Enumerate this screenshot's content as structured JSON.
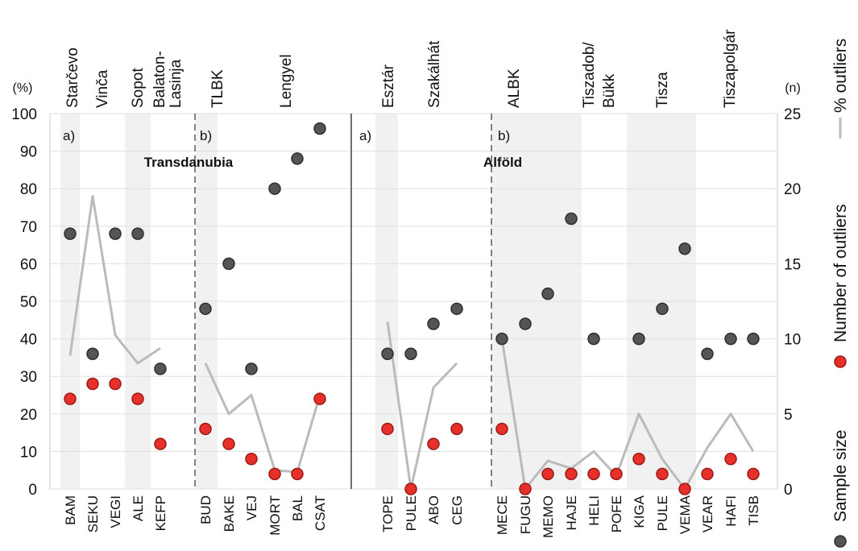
{
  "chart_data": {
    "type": "scatter",
    "left_axis": {
      "unit": "(%)",
      "ylim": [
        0,
        100
      ],
      "ticks": [
        0,
        10,
        20,
        30,
        40,
        50,
        60,
        70,
        80,
        90,
        100
      ]
    },
    "right_axis": {
      "unit": "(n)",
      "ylim": [
        0,
        25
      ],
      "ticks": [
        0,
        5,
        10,
        15,
        20,
        25
      ]
    },
    "grid": true,
    "legend": [
      {
        "key": "pct",
        "label": "% outliers",
        "color": "#bbbbbb",
        "marker": "line"
      },
      {
        "key": "outliers",
        "label": "Number of outliers",
        "color": "#e8302b",
        "marker": "circle"
      },
      {
        "key": "samples",
        "label": "Sample size",
        "color": "#555555",
        "marker": "circle"
      }
    ],
    "categories": [
      "BAM",
      "SEKU",
      "VEGI",
      "ALE",
      "KEFP",
      "BUD",
      "BAKE",
      "VEJ",
      "MORT",
      "BAL",
      "CSAT",
      "TOPE",
      "PULE",
      "ABO",
      "CEG",
      "MECE",
      "FUGU",
      "MEMO",
      "HAJE",
      "HELI",
      "POFE",
      "KIGA",
      "PULE",
      "VEMA",
      "VEAR",
      "HAFI",
      "TISB"
    ],
    "regions": [
      {
        "label": "Transdanubia",
        "panels": [
          "a)",
          "b)"
        ]
      },
      {
        "label": "Alföld",
        "panels": [
          "a)",
          "b)"
        ]
      }
    ],
    "cultures": [
      {
        "label": "Starčevo"
      },
      {
        "label": "Vinča"
      },
      {
        "label": "Sopot"
      },
      {
        "label": "Balaton-"
      },
      {
        "label": "Lasinja"
      },
      {
        "label": "TLBK"
      },
      {
        "label": "Lengyel"
      },
      {
        "label": "Esztár"
      },
      {
        "label": "Szakálhát"
      },
      {
        "label": "ALBK"
      },
      {
        "label": "Tiszadob/"
      },
      {
        "label": "Bükk"
      },
      {
        "label": "Tisza"
      },
      {
        "label": "Tiszapolgár"
      }
    ],
    "series": [
      {
        "key": "samples",
        "values": [
          17,
          9,
          17,
          17,
          8,
          12,
          15,
          8,
          20,
          22,
          24,
          9,
          9,
          11,
          12,
          10,
          11,
          13,
          18,
          10,
          null,
          10,
          12,
          16,
          9,
          10,
          10
        ]
      },
      {
        "key": "outliers",
        "values": [
          6,
          7,
          7,
          6,
          3,
          4,
          3,
          2,
          1,
          1,
          6,
          4,
          0,
          3,
          4,
          4,
          0,
          1,
          1,
          1,
          1,
          2,
          1,
          0,
          1,
          2,
          1
        ]
      },
      {
        "key": "pct",
        "segments": [
          [
            [
              0,
              35.5
            ],
            [
              1,
              78
            ],
            [
              2,
              41
            ],
            [
              3,
              33.5
            ],
            [
              4,
              37.5
            ]
          ],
          [
            [
              5,
              33.5
            ],
            [
              6,
              20
            ],
            [
              7,
              25
            ],
            [
              8,
              5
            ],
            [
              9,
              4.5
            ],
            [
              10,
              25
            ]
          ],
          [
            [
              11,
              44.5
            ],
            [
              12,
              0
            ],
            [
              13,
              27
            ],
            [
              14,
              33.5
            ]
          ],
          [
            [
              15,
              40
            ],
            [
              16,
              0
            ],
            [
              17,
              7.5
            ],
            [
              18,
              5.5
            ],
            [
              19,
              10
            ],
            [
              20,
              3.5
            ],
            [
              21,
              20
            ],
            [
              22,
              8
            ],
            [
              23,
              0
            ],
            [
              24,
              11
            ],
            [
              25,
              20
            ],
            [
              26,
              10
            ]
          ]
        ]
      }
    ]
  }
}
